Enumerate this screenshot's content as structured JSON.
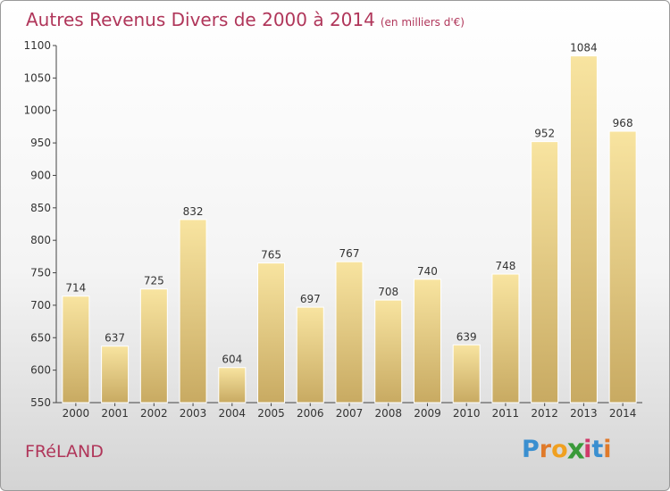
{
  "title": "Autres Revenus Divers de 2000 à 2014",
  "subtitle": "(en milliers d'€)",
  "town": "FRéLAND",
  "logo": {
    "letters": [
      "P",
      "r",
      "o",
      "x",
      "i",
      "t",
      "i"
    ],
    "colors": [
      "#3a8fd0",
      "#e07a2a",
      "#f0a020",
      "#3a9a3a",
      "#d03a6a",
      "#3a8fd0",
      "#e07a2a"
    ]
  },
  "colors": {
    "title": "#b0365a",
    "bar_light": "#f8e4a0",
    "bar_dark": "#c8aa62",
    "axis": "#444444"
  },
  "chart_data": {
    "type": "bar",
    "categories": [
      "2000",
      "2001",
      "2002",
      "2003",
      "2004",
      "2005",
      "2006",
      "2007",
      "2008",
      "2009",
      "2010",
      "2011",
      "2012",
      "2013",
      "2014"
    ],
    "values": [
      714,
      637,
      725,
      832,
      604,
      765,
      697,
      767,
      708,
      740,
      639,
      748,
      952,
      1084,
      968
    ],
    "ylim": [
      550,
      1100
    ],
    "yticks": [
      550,
      600,
      650,
      700,
      750,
      800,
      850,
      900,
      950,
      1000,
      1050,
      1100
    ],
    "grid": false,
    "legend": "none"
  }
}
